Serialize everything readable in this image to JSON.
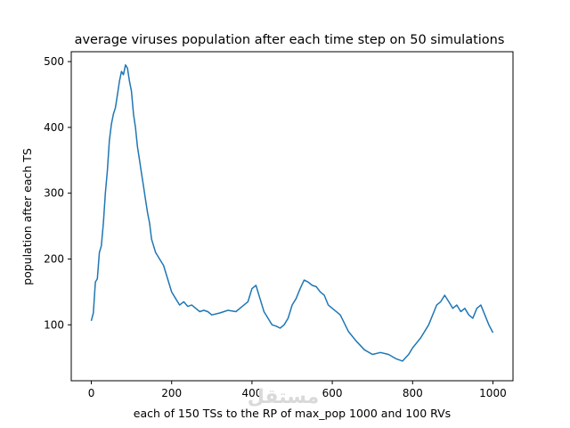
{
  "chart_data": {
    "type": "line",
    "title": "average viruses population after each time step on 50 simulations",
    "xlabel": "each of 150 TSs to the RP of max_pop 1000 and 100 RVs",
    "ylabel": "population after each TS",
    "xlim": [
      -50,
      1050
    ],
    "ylim": [
      15,
      515
    ],
    "xticks": [
      0,
      200,
      400,
      600,
      800,
      1000
    ],
    "yticks": [
      100,
      200,
      300,
      400,
      500
    ],
    "grid": false,
    "series": [
      {
        "color": "#1f77b4",
        "x": [
          0,
          5,
          10,
          15,
          20,
          25,
          30,
          35,
          40,
          45,
          50,
          55,
          60,
          65,
          70,
          75,
          80,
          85,
          90,
          95,
          100,
          105,
          110,
          115,
          120,
          125,
          130,
          135,
          140,
          145,
          150,
          160,
          170,
          180,
          190,
          200,
          210,
          220,
          230,
          240,
          250,
          260,
          270,
          280,
          290,
          300,
          320,
          340,
          360,
          380,
          390,
          400,
          410,
          420,
          430,
          440,
          450,
          460,
          470,
          480,
          490,
          500,
          510,
          520,
          530,
          540,
          550,
          560,
          570,
          580,
          590,
          600,
          620,
          640,
          660,
          680,
          700,
          720,
          740,
          760,
          775,
          790,
          800,
          820,
          840,
          860,
          870,
          880,
          890,
          900,
          910,
          920,
          930,
          940,
          950,
          960,
          970,
          980,
          990,
          1000
        ],
        "y": [
          106,
          118,
          165,
          170,
          210,
          220,
          255,
          300,
          335,
          380,
          405,
          420,
          430,
          450,
          470,
          485,
          480,
          495,
          490,
          470,
          455,
          420,
          400,
          370,
          350,
          330,
          310,
          290,
          270,
          255,
          230,
          210,
          200,
          190,
          170,
          150,
          140,
          130,
          135,
          128,
          130,
          125,
          120,
          122,
          120,
          115,
          118,
          122,
          120,
          130,
          135,
          155,
          160,
          140,
          120,
          110,
          100,
          98,
          95,
          100,
          110,
          130,
          140,
          155,
          168,
          165,
          160,
          158,
          150,
          145,
          130,
          125,
          115,
          90,
          75,
          62,
          55,
          58,
          55,
          48,
          45,
          55,
          65,
          80,
          100,
          130,
          135,
          145,
          135,
          125,
          130,
          120,
          125,
          115,
          110,
          125,
          130,
          115,
          100,
          88
        ]
      }
    ]
  },
  "watermark": "مستقل"
}
